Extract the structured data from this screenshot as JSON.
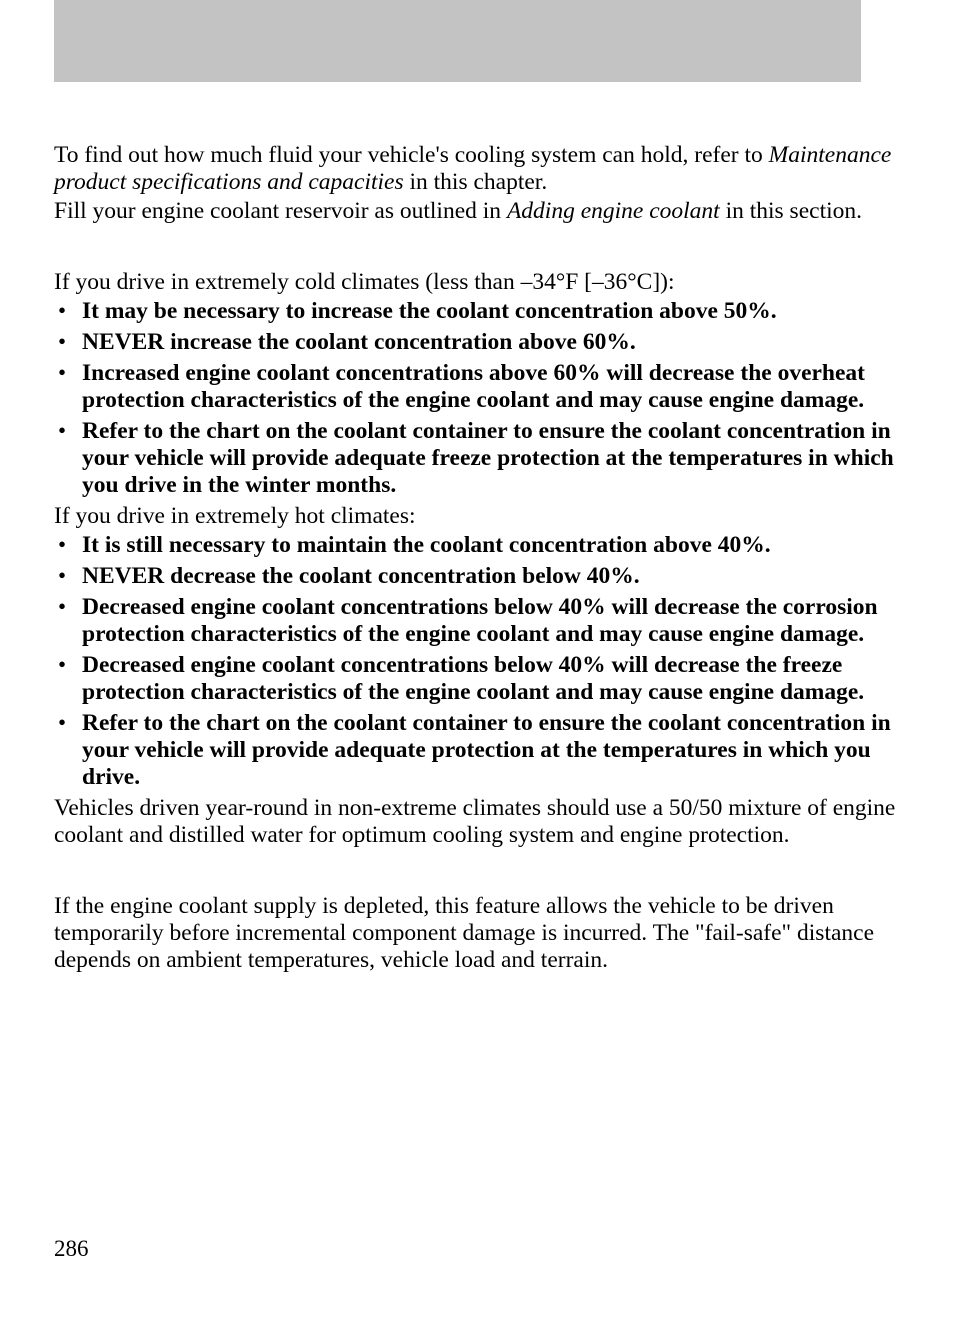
{
  "intro": {
    "p1_before_italic": "To find out how much fluid your vehicle's cooling system can hold, refer to ",
    "p1_italic": "Maintenance product specifications and capacities",
    "p1_after_italic": " in this chapter.",
    "p2_before_italic": "Fill your engine coolant reservoir as outlined in ",
    "p2_italic": "Adding engine coolant",
    "p2_after_italic": " in this section."
  },
  "cold_section": {
    "intro": "If you drive in extremely cold climates (less than –34°F [–36°C]):",
    "bullets": [
      "It may be necessary to increase the coolant concentration above 50%.",
      "NEVER increase the coolant concentration above 60%.",
      "Increased engine coolant concentrations above 60% will decrease the overheat protection characteristics of the engine coolant and may cause engine damage.",
      "Refer to the chart on the coolant container to ensure the coolant concentration in your vehicle will provide adequate freeze protection at the temperatures in which you drive in the winter months."
    ]
  },
  "hot_section": {
    "intro": "If you drive in extremely hot climates:",
    "bullets": [
      "It is still necessary to maintain the coolant concentration above 40%.",
      "NEVER decrease the coolant concentration below 40%.",
      "Decreased engine coolant concentrations below 40% will decrease the corrosion protection characteristics of the engine coolant and may cause engine damage.",
      "Decreased engine coolant concentrations below 40% will decrease the freeze protection characteristics of the engine coolant and may cause engine damage.",
      "Refer to the chart on the coolant container to ensure the coolant concentration in your vehicle will provide adequate protection at the temperatures in which you drive."
    ]
  },
  "year_round": "Vehicles driven year-round in non-extreme climates should use a 50/50 mixture of engine coolant and distilled water for optimum cooling system and engine protection.",
  "failsafe": "If the engine coolant supply is depleted, this feature allows the vehicle to be driven temporarily before incremental component damage is incurred. The \"fail-safe\" distance depends on ambient temperatures, vehicle load and terrain.",
  "page_number": "286"
}
